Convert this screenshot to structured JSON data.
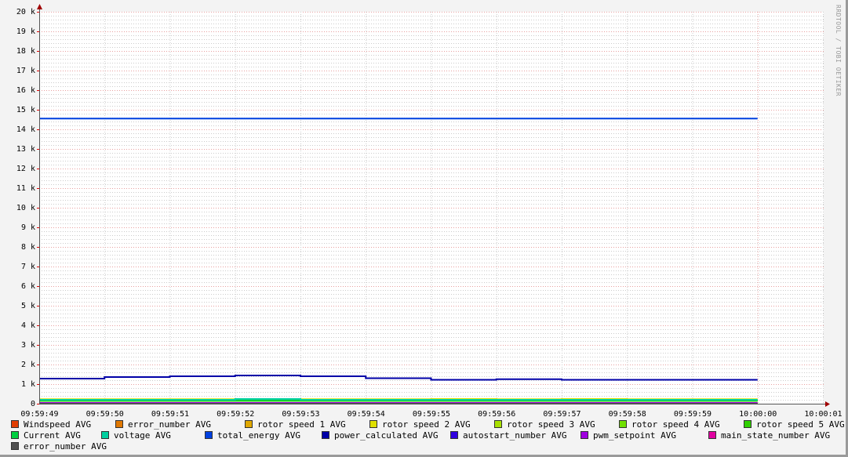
{
  "watermark": "RRDTOOL / TOBI OETIKER",
  "chart_data": {
    "type": "line",
    "step": true,
    "x_ticks": [
      "09:59:49",
      "09:59:50",
      "09:59:51",
      "09:59:52",
      "09:59:53",
      "09:59:54",
      "09:59:55",
      "09:59:56",
      "09:59:57",
      "09:59:58",
      "09:59:59",
      "10:00:00",
      "10:00:01"
    ],
    "y_ticks": [
      "0",
      "1 k",
      "2 k",
      "3 k",
      "4 k",
      "5 k",
      "6 k",
      "7 k",
      "8 k",
      "9 k",
      "10 k",
      "11 k",
      "12 k",
      "13 k",
      "14 k",
      "15 k",
      "16 k",
      "17 k",
      "18 k",
      "19 k",
      "20 k"
    ],
    "ylim": [
      0,
      20000
    ],
    "grid": true,
    "legend_position": "bottom",
    "series": [
      {
        "name": "Windspeed AVG",
        "color": "#e03c00",
        "values": [
          0,
          0,
          0,
          0,
          0,
          0,
          0,
          0,
          0,
          0,
          0
        ]
      },
      {
        "name": "error_number AVG",
        "color": "#e07800",
        "values": [
          0,
          0,
          0,
          0,
          0,
          0,
          0,
          0,
          0,
          0,
          0
        ]
      },
      {
        "name": "rotor speed 1 AVG",
        "color": "#e0a800",
        "values": [
          200,
          200,
          200,
          210,
          200,
          200,
          200,
          200,
          200,
          200,
          200
        ]
      },
      {
        "name": "rotor speed 2 AVG",
        "color": "#e0e000",
        "values": [
          230,
          230,
          230,
          230,
          230,
          230,
          240,
          230,
          240,
          230,
          230
        ]
      },
      {
        "name": "rotor speed 3 AVG",
        "color": "#a8e000",
        "values": [
          160,
          160,
          160,
          160,
          160,
          160,
          160,
          160,
          160,
          160,
          160
        ]
      },
      {
        "name": "rotor speed 4 AVG",
        "color": "#70e000",
        "values": [
          150,
          150,
          150,
          150,
          150,
          150,
          150,
          150,
          150,
          150,
          150
        ]
      },
      {
        "name": "rotor speed 5 AVG",
        "color": "#30d000",
        "values": [
          140,
          140,
          140,
          140,
          140,
          140,
          140,
          140,
          140,
          140,
          140
        ]
      },
      {
        "name": "Current AVG",
        "color": "#00d040",
        "values": [
          180,
          180,
          180,
          180,
          180,
          180,
          180,
          180,
          180,
          180,
          180
        ]
      },
      {
        "name": "voltage AVG",
        "color": "#00d0a0",
        "values": [
          200,
          200,
          200,
          240,
          200,
          200,
          200,
          200,
          200,
          200,
          200
        ]
      },
      {
        "name": "total_energy AVG",
        "color": "#0040e0",
        "values": [
          14550,
          14550,
          14550,
          14550,
          14550,
          14550,
          14550,
          14550,
          14550,
          14550,
          14550
        ]
      },
      {
        "name": "power_calculated AVG",
        "color": "#0000a8",
        "values": [
          1280,
          1360,
          1400,
          1440,
          1400,
          1300,
          1220,
          1250,
          1220,
          1220,
          1220
        ]
      },
      {
        "name": "autostart_number AVG",
        "color": "#3000e0",
        "values": [
          0,
          0,
          0,
          0,
          0,
          0,
          0,
          0,
          0,
          0,
          0
        ]
      },
      {
        "name": "pwm_setpoint AVG",
        "color": "#a000e0",
        "values": [
          40,
          40,
          40,
          40,
          40,
          40,
          40,
          40,
          40,
          40,
          40
        ]
      },
      {
        "name": "main_state_number AVG",
        "color": "#e000a0",
        "values": [
          0,
          0,
          0,
          0,
          0,
          0,
          0,
          0,
          0,
          0,
          0
        ]
      },
      {
        "name": "error_number AVG",
        "color": "#505050",
        "values": [
          0,
          0,
          0,
          0,
          0,
          0,
          0,
          0,
          0,
          0,
          0
        ]
      }
    ]
  }
}
